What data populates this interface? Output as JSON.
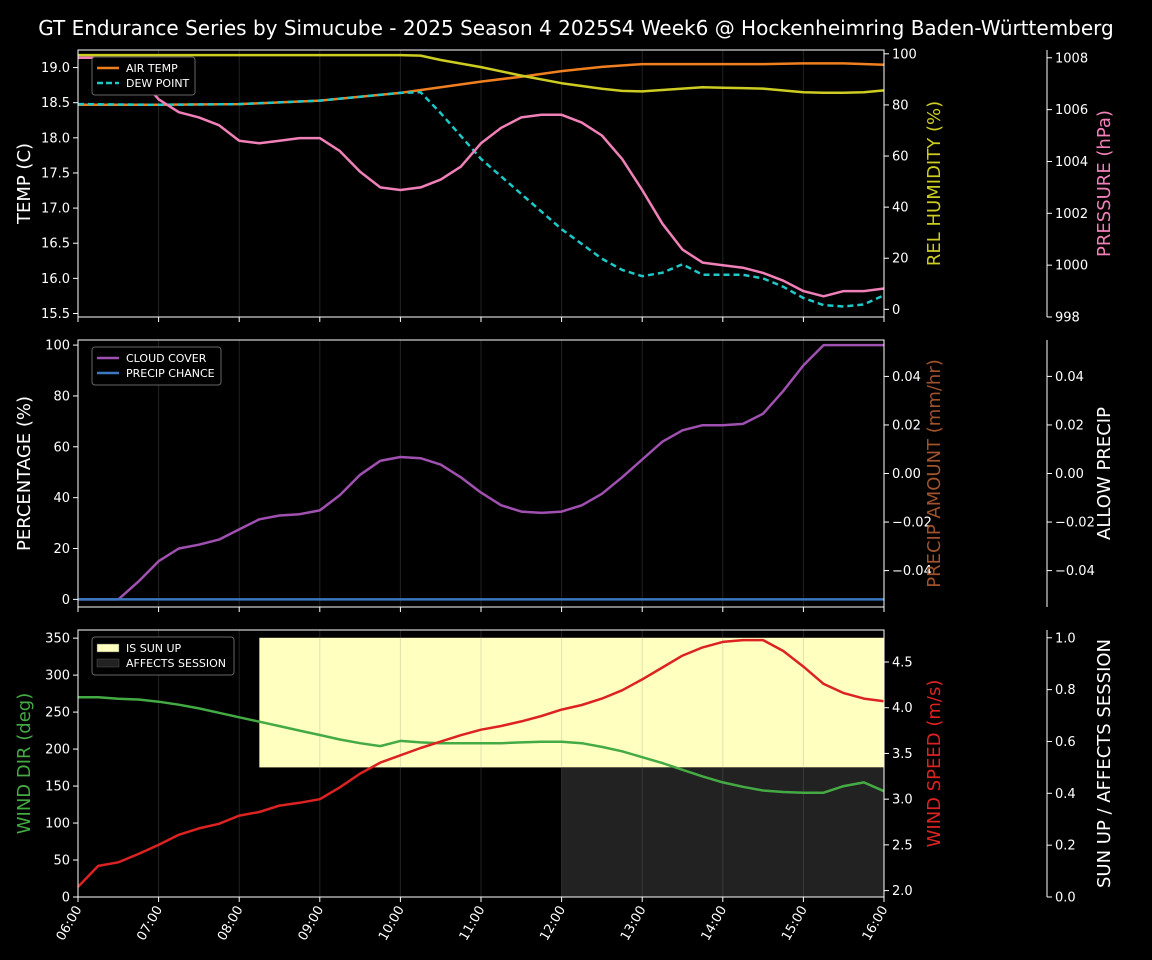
{
  "title": "GT Endurance Series by Simucube - 2025 Season 4 2025S4 Week6 @ Hockenheimring Baden-Württemberg",
  "x_ticks": [
    "06:00",
    "07:00",
    "08:00",
    "09:00",
    "10:00",
    "11:00",
    "12:00",
    "13:00",
    "14:00",
    "15:00",
    "16:00"
  ],
  "colors": {
    "air_temp": "#f07f20",
    "dew_point": "#1ec8c8",
    "humidity": "#cccc22",
    "pressure": "#f080b8",
    "cloud": "#a050b0",
    "precip_chance": "#3a78c0",
    "precip_amount": "#a0522d",
    "wind_dir": "#44aa44",
    "wind_speed": "#dd2222",
    "sun_up": "#ffffc0",
    "affects": "#222222"
  },
  "chart_data": [
    {
      "type": "line",
      "panel": "temperature",
      "title": "",
      "x_range": [
        "06:00",
        "16:00"
      ],
      "ylabel_left": "TEMP (C)",
      "ylabel_right1": "REL HUMIDITY (%)",
      "ylabel_right2": "PRESSURE (hPa)",
      "ylim_left": [
        15.45,
        19.25
      ],
      "ylim_right1": [
        -3,
        101.5
      ],
      "ylim_right2": [
        998,
        1008.3
      ],
      "yticks_left": [
        "15.5",
        "16.0",
        "16.5",
        "17.0",
        "17.5",
        "18.0",
        "18.5",
        "19.0"
      ],
      "yticks_right1": [
        "0",
        "20",
        "40",
        "60",
        "80",
        "100"
      ],
      "yticks_right2": [
        "998",
        "1000",
        "1002",
        "1004",
        "1006",
        "1008"
      ],
      "legend": [
        "AIR TEMP",
        "DEW POINT"
      ],
      "legend_position": "top-left",
      "series": [
        {
          "name": "AIR TEMP",
          "axis": "left",
          "x": [
            "06:00",
            "07:00",
            "08:00",
            "09:00",
            "10:00",
            "10:30",
            "11:00",
            "11:30",
            "12:00",
            "12:30",
            "13:00",
            "13:30",
            "14:00",
            "14:30",
            "15:00",
            "15:30",
            "16:00"
          ],
          "y": [
            18.47,
            18.47,
            18.48,
            18.53,
            18.64,
            18.72,
            18.8,
            18.87,
            18.95,
            19.01,
            19.05,
            19.05,
            19.05,
            19.05,
            19.06,
            19.06,
            19.04
          ]
        },
        {
          "name": "DEW POINT",
          "axis": "left",
          "style": "dashed",
          "x": [
            "06:00",
            "07:00",
            "08:00",
            "09:00",
            "10:00",
            "10:15",
            "10:30",
            "11:00",
            "11:30",
            "12:00",
            "12:30",
            "12:45",
            "13:00",
            "13:15",
            "13:30",
            "13:45",
            "14:00",
            "14:15",
            "14:30",
            "14:45",
            "15:00",
            "15:15",
            "15:30",
            "15:45",
            "16:00"
          ],
          "y": [
            18.48,
            18.47,
            18.48,
            18.53,
            18.64,
            18.65,
            18.35,
            17.7,
            17.2,
            16.7,
            16.28,
            16.12,
            16.03,
            16.08,
            16.2,
            16.05,
            16.05,
            16.05,
            16.0,
            15.88,
            15.72,
            15.62,
            15.6,
            15.63,
            15.76
          ]
        },
        {
          "name": "REL HUMIDITY",
          "axis": "right1",
          "x": [
            "06:00",
            "08:00",
            "10:00",
            "10:15",
            "10:30",
            "11:00",
            "11:30",
            "12:00",
            "12:30",
            "12:45",
            "13:00",
            "13:30",
            "13:45",
            "14:00",
            "14:15",
            "14:30",
            "15:00",
            "15:15",
            "15:30",
            "15:45",
            "16:00"
          ],
          "y": [
            99.5,
            99.5,
            99.5,
            99.3,
            97.6,
            94.8,
            91.5,
            88.5,
            86.3,
            85.5,
            85.3,
            86.4,
            86.9,
            86.7,
            86.6,
            86.4,
            85,
            84.8,
            84.8,
            85,
            85.7
          ]
        },
        {
          "name": "PRESSURE",
          "axis": "right2",
          "x": [
            "06:00",
            "06:15",
            "06:30",
            "06:45",
            "07:00",
            "07:15",
            "07:30",
            "07:45",
            "08:00",
            "08:15",
            "08:30",
            "08:45",
            "09:00",
            "09:15",
            "09:30",
            "09:45",
            "10:00",
            "10:15",
            "10:30",
            "10:45",
            "11:00",
            "11:15",
            "11:30",
            "11:45",
            "12:00",
            "12:15",
            "12:30",
            "12:45",
            "13:00",
            "13:15",
            "13:30",
            "13:45",
            "14:00",
            "14:15",
            "14:30",
            "14:45",
            "15:00",
            "15:15",
            "15:30",
            "15:45",
            "16:00"
          ],
          "y": [
            1008,
            1008,
            1007.8,
            1007.3,
            1006.4,
            1005.9,
            1005.7,
            1005.4,
            1004.8,
            1004.7,
            1004.8,
            1004.9,
            1004.9,
            1004.4,
            1003.6,
            1003,
            1002.9,
            1003,
            1003.3,
            1003.8,
            1004.7,
            1005.3,
            1005.7,
            1005.8,
            1005.8,
            1005.5,
            1005,
            1004.1,
            1002.9,
            1001.6,
            1000.6,
            1000.1,
            1000,
            999.9,
            999.7,
            999.4,
            999.0,
            998.8,
            999.0,
            999.0,
            999.1
          ]
        }
      ]
    },
    {
      "type": "line",
      "panel": "precipitation",
      "title": "",
      "x_range": [
        "06:00",
        "16:00"
      ],
      "ylabel_left": "PERCENTAGE (%)",
      "ylabel_right1": "PRECIP AMOUNT (mm/hr)",
      "ylabel_right2": "ALLOW PRECIP",
      "ylim_left": [
        -3,
        102
      ],
      "ylim_right1": [
        -0.055,
        0.055
      ],
      "ylim_right2": [
        -0.055,
        0.055
      ],
      "yticks_left": [
        "0",
        "20",
        "40",
        "60",
        "80",
        "100"
      ],
      "yticks_right1": [
        "−0.04",
        "−0.02",
        "0.00",
        "0.02",
        "0.04"
      ],
      "yticks_right2": [
        "−0.04",
        "−0.02",
        "0.00",
        "0.02",
        "0.04"
      ],
      "legend": [
        "CLOUD COVER",
        "PRECIP CHANCE"
      ],
      "legend_position": "top-left",
      "series": [
        {
          "name": "CLOUD COVER",
          "axis": "left",
          "x": [
            "06:00",
            "06:15",
            "06:30",
            "06:45",
            "07:00",
            "07:15",
            "07:30",
            "07:45",
            "08:00",
            "08:15",
            "08:30",
            "08:45",
            "09:00",
            "09:15",
            "09:30",
            "09:45",
            "10:00",
            "10:15",
            "10:30",
            "10:45",
            "11:00",
            "11:15",
            "11:30",
            "11:45",
            "12:00",
            "12:15",
            "12:30",
            "12:45",
            "13:00",
            "13:15",
            "13:30",
            "13:45",
            "14:00",
            "14:15",
            "14:30",
            "14:45",
            "15:00",
            "15:15",
            "15:30",
            "15:45",
            "16:00"
          ],
          "y": [
            0,
            0,
            0,
            7,
            15,
            20,
            21.5,
            23.5,
            27.5,
            31.5,
            33,
            33.5,
            35,
            41,
            49,
            54.5,
            56,
            55.5,
            53,
            48,
            42,
            37,
            34.5,
            34,
            34.5,
            37,
            41.5,
            48,
            55,
            62,
            66.5,
            68.5,
            68.5,
            69,
            73,
            82,
            92,
            100,
            100,
            100,
            100
          ]
        },
        {
          "name": "PRECIP CHANCE",
          "axis": "left",
          "x": [
            "06:00",
            "16:00"
          ],
          "y": [
            0,
            0
          ]
        }
      ]
    },
    {
      "type": "line",
      "panel": "wind",
      "title": "",
      "x_range": [
        "06:00",
        "16:00"
      ],
      "ylabel_left": "WIND DIR (deg)",
      "ylabel_right1": "WIND SPEED (m/s)",
      "ylabel_right2": "SUN UP / AFFECTS SESSION",
      "ylim_left": [
        0,
        361
      ],
      "ylim_right1": [
        1.93,
        4.85
      ],
      "ylim_right2": [
        0,
        1.03
      ],
      "yticks_left": [
        "0",
        "50",
        "100",
        "150",
        "200",
        "250",
        "300",
        "350"
      ],
      "yticks_right1": [
        "2.0",
        "2.5",
        "3.0",
        "3.5",
        "4.0",
        "4.5"
      ],
      "yticks_right2": [
        "0.0",
        "0.2",
        "0.4",
        "0.6",
        "0.8",
        "1.0"
      ],
      "legend": [
        "IS SUN UP",
        "AFFECTS SESSION"
      ],
      "legend_position": "top-left",
      "sun_up_interval": [
        "08:15",
        "16:00"
      ],
      "affects_session_interval": [
        "12:00",
        "16:00"
      ],
      "series": [
        {
          "name": "WIND DIR",
          "axis": "left",
          "x": [
            "06:00",
            "06:15",
            "06:30",
            "06:45",
            "07:00",
            "07:15",
            "07:30",
            "07:45",
            "08:00",
            "08:15",
            "08:30",
            "08:45",
            "09:00",
            "09:15",
            "09:30",
            "09:45",
            "10:00",
            "10:15",
            "10:30",
            "10:45",
            "11:00",
            "11:15",
            "11:30",
            "11:45",
            "12:00",
            "12:15",
            "12:30",
            "12:45",
            "13:00",
            "13:15",
            "13:30",
            "13:45",
            "14:00",
            "14:15",
            "14:30",
            "14:45",
            "15:00",
            "15:15",
            "15:30",
            "15:45",
            "16:00"
          ],
          "y": [
            270,
            270,
            268,
            267,
            264,
            260,
            255,
            249,
            243,
            237,
            231,
            225,
            219,
            213,
            208,
            204,
            211,
            209,
            208,
            208,
            208,
            208,
            209,
            210,
            210,
            208,
            203,
            197,
            189,
            181,
            172,
            163,
            155,
            149,
            144,
            142,
            141,
            141,
            150,
            155,
            143
          ]
        },
        {
          "name": "WIND SPEED",
          "axis": "right1",
          "x": [
            "06:00",
            "06:15",
            "06:30",
            "06:45",
            "07:00",
            "07:15",
            "07:30",
            "07:45",
            "08:00",
            "08:15",
            "08:30",
            "08:45",
            "09:00",
            "09:15",
            "09:30",
            "09:45",
            "10:00",
            "10:15",
            "10:30",
            "10:45",
            "11:00",
            "11:15",
            "11:30",
            "11:45",
            "12:00",
            "12:15",
            "12:30",
            "12:45",
            "13:00",
            "13:15",
            "13:30",
            "13:45",
            "14:00",
            "14:15",
            "14:30",
            "14:45",
            "15:00",
            "15:15",
            "15:30",
            "15:45",
            "16:00"
          ],
          "y": [
            2.04,
            2.27,
            2.31,
            2.4,
            2.5,
            2.61,
            2.68,
            2.73,
            2.82,
            2.86,
            2.93,
            2.96,
            3.0,
            3.13,
            3.28,
            3.4,
            3.48,
            3.56,
            3.63,
            3.7,
            3.76,
            3.8,
            3.85,
            3.91,
            3.98,
            4.03,
            4.1,
            4.19,
            4.31,
            4.44,
            4.57,
            4.66,
            4.72,
            4.74,
            4.74,
            4.62,
            4.45,
            4.26,
            4.16,
            4.1,
            4.07
          ]
        }
      ]
    }
  ]
}
